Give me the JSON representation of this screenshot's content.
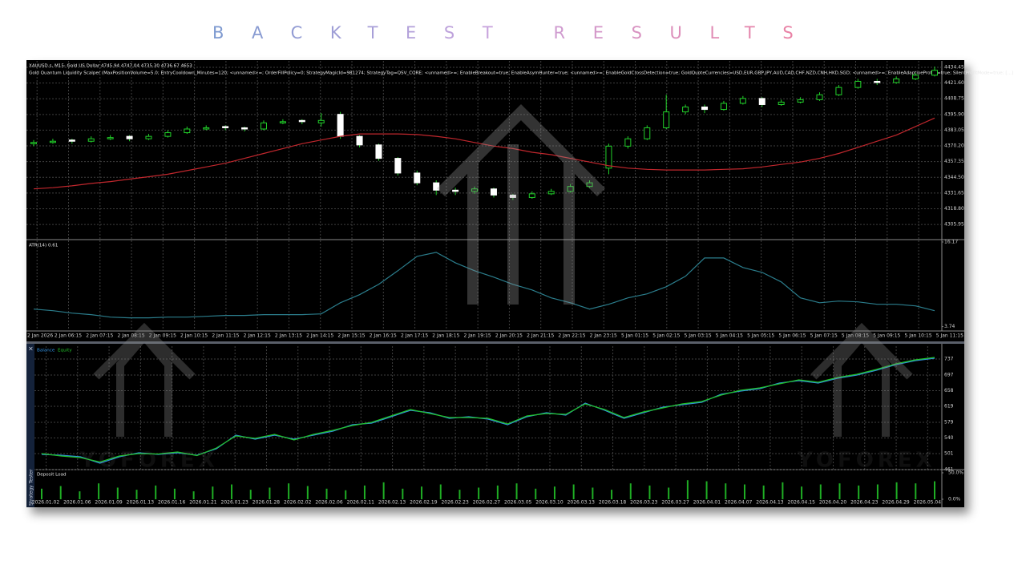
{
  "title": "BACKTEST RESULTS",
  "watermark": "YOFOREX",
  "panel_label": "Strategy Tester",
  "chart_data": [
    {
      "type": "candlestick",
      "title": "XAUUSD.s, M15:  Gold US Dollar  4745.94 4747.04 4735.30 4736.67  4653",
      "subtitle": "Gold Quantum Liquidity Scalper (MaxPositionVolume=5.0; EntryCooldown_Minutes=120; <unnamed>=; OrderFillPolicy=0; StrategyMagicId=981274; StrategyTag=QSV_CORE; <unnamed>=; EnableBreakout=true; EnableAsymHunter=true; <unnamed>=; EnableGoldCrossDetection=true; GoldQuoteCurrencies=USD,EUR,GBP,JPY,AUD,CAD,CHF,NZD,CNH,HKD,SGD; <unnamed>=; EnableAdaptiveProfile=true; SilentProfitMode=true; [...]",
      "open": [
        4372,
        4373,
        4375,
        4374,
        4376,
        4378,
        4376,
        4378,
        4381,
        4384,
        4386,
        4385,
        4384,
        4389,
        4391,
        4389,
        4396,
        4378,
        4371,
        4360,
        4348,
        4340,
        4334,
        4333,
        4335,
        4330,
        4328,
        4331,
        4333,
        4337,
        4352,
        4370,
        4376,
        4385,
        4398,
        4402,
        4400,
        4405,
        4409,
        4404,
        4406,
        4408,
        4412,
        4418,
        4423,
        4422,
        4425,
        4428
      ],
      "high": [
        4375,
        4376,
        4376,
        4378,
        4379,
        4379,
        4380,
        4383,
        4386,
        4387,
        4387,
        4386,
        4391,
        4392,
        4392,
        4397,
        4398,
        4379,
        4372,
        4361,
        4350,
        4342,
        4336,
        4337,
        4336,
        4331,
        4333,
        4335,
        4339,
        4342,
        4372,
        4378,
        4387,
        4412,
        4404,
        4404,
        4407,
        4411,
        4410,
        4408,
        4410,
        4414,
        4420,
        4425,
        4425,
        4427,
        4430,
        4435
      ],
      "low": [
        4370,
        4372,
        4372,
        4373,
        4375,
        4374,
        4375,
        4377,
        4380,
        4383,
        4383,
        4382,
        4383,
        4388,
        4388,
        4386,
        4376,
        4369,
        4358,
        4346,
        4338,
        4330,
        4330,
        4331,
        4328,
        4326,
        4327,
        4330,
        4332,
        4336,
        4347,
        4368,
        4375,
        4384,
        4396,
        4397,
        4399,
        4404,
        4402,
        4403,
        4405,
        4407,
        4411,
        4417,
        4420,
        4421,
        4424,
        4427
      ],
      "close": [
        4373,
        4374,
        4374,
        4376,
        4377,
        4376,
        4378,
        4381,
        4384,
        4385,
        4385,
        4384,
        4389,
        4390,
        4390,
        4391,
        4378,
        4371,
        4360,
        4348,
        4340,
        4334,
        4333,
        4335,
        4330,
        4328,
        4331,
        4333,
        4337,
        4340,
        4370,
        4376,
        4385,
        4398,
        4402,
        4400,
        4405,
        4409,
        4404,
        4406,
        4408,
        4412,
        4418,
        4423,
        4422,
        4425,
        4428,
        4432
      ],
      "up_color": "#000000",
      "down_color": "#ffffff",
      "wick_color": "#22d12a",
      "ma": {
        "color": "#c0272d",
        "values": [
          4335,
          4336,
          4337.5,
          4339.5,
          4341,
          4343,
          4345,
          4347,
          4350,
          4353,
          4356,
          4360,
          4364,
          4368,
          4372,
          4375,
          4378,
          4380,
          4380,
          4380,
          4379.5,
          4378,
          4376,
          4373,
          4370,
          4368,
          4365,
          4363,
          4360,
          4357,
          4354,
          4352,
          4351,
          4350.5,
          4350.5,
          4350.5,
          4351,
          4351.5,
          4353,
          4355,
          4357,
          4360,
          4364,
          4369,
          4374,
          4379,
          4386,
          4393
        ]
      },
      "time_labels": [
        "2 Jan 2026",
        "2 Jan 06:15",
        "2 Jan 07:15",
        "2 Jan 08:15",
        "2 Jan 09:15",
        "2 Jan 10:15",
        "2 Jan 11:15",
        "2 Jan 12:15",
        "2 Jan 13:15",
        "2 Jan 14:15",
        "2 Jan 15:15",
        "2 Jan 16:15",
        "2 Jan 17:15",
        "2 Jan 18:15",
        "2 Jan 19:15",
        "2 Jan 20:15",
        "2 Jan 21:15",
        "2 Jan 22:15",
        "2 Jan 23:15",
        "5 Jan 01:15",
        "5 Jan 02:15",
        "5 Jan 03:15",
        "5 Jan 04:15",
        "5 Jan 05:15",
        "5 Jan 06:15",
        "5 Jan 07:15",
        "5 Jan 08:15",
        "5 Jan 09:15",
        "5 Jan 10:15",
        "5 Jan 11:15"
      ],
      "ylim": [
        4294.2,
        4439.7
      ],
      "yticks": [
        4434.45,
        {
          "value": 4421.6,
          "label": "4421.60"
        },
        4408.75,
        {
          "value": 4395.9,
          "label": "4395.90"
        },
        4383.05,
        {
          "value": 4370.2,
          "label": "4370.20"
        },
        4357.35,
        {
          "value": 4344.5,
          "label": "4344.50"
        },
        4331.65,
        {
          "value": 4318.8,
          "label": "4318.80"
        },
        4305.95
      ],
      "grid": true
    },
    {
      "type": "line",
      "title": "ATR(14) 0.61",
      "series": [
        {
          "color": "#2b7d8c",
          "values": [
            6.32,
            6.08,
            5.73,
            5.5,
            5.14,
            5.03,
            5.03,
            5.14,
            5.14,
            5.26,
            5.38,
            5.38,
            5.5,
            5.5,
            5.5,
            5.61,
            7.25,
            8.43,
            9.95,
            11.95,
            14.06,
            14.65,
            13.12,
            11.95,
            11.01,
            9.95,
            9.13,
            7.96,
            7.25,
            6.32,
            7.02,
            7.96,
            8.55,
            9.6,
            11.13,
            13.82,
            13.82,
            12.42,
            11.71,
            10.3,
            7.96,
            7.25,
            7.49,
            7.37,
            7.02,
            7.02,
            6.79,
            6.08
          ]
        }
      ],
      "ylim": [
        3.22,
        16.4
      ],
      "yticks": [
        16.17,
        3.74
      ],
      "grid": false
    },
    {
      "type": "line",
      "series": [
        {
          "name": "Balance",
          "color": "#2f8fe0",
          "values": [
            499,
            497,
            493,
            477,
            493,
            503,
            499,
            503,
            497,
            513,
            547,
            537,
            547,
            537,
            547,
            557,
            573,
            577,
            593,
            609,
            603,
            589,
            593,
            587,
            573,
            593,
            603,
            597,
            627,
            609,
            589,
            603,
            617,
            623,
            629,
            649,
            657,
            663,
            677,
            683,
            677,
            689,
            697,
            709,
            723,
            733,
            739
          ]
        },
        {
          "name": "Equity",
          "color": "#22c22a",
          "values": [
            501,
            495,
            491,
            480,
            495,
            501,
            500,
            505,
            496,
            515,
            545,
            539,
            549,
            535,
            549,
            559,
            571,
            579,
            595,
            611,
            601,
            591,
            591,
            589,
            575,
            595,
            601,
            599,
            625,
            611,
            591,
            605,
            615,
            625,
            631,
            647,
            659,
            665,
            675,
            685,
            679,
            691,
            699,
            711,
            725,
            735,
            741
          ]
        }
      ],
      "date_labels": [
        "2026.01.02",
        "2026.01.06",
        "2026.01.09",
        "2026.01.13",
        "2026.01.16",
        "2026.01.21",
        "2026.01.23",
        "2026.01.28",
        "2026.02.02",
        "2026.02.06",
        "2026.02.11",
        "2026.02.13",
        "2026.02.19",
        "2026.02.23",
        "2026.02.27",
        "2026.03.05",
        "2026.03.10",
        "2026.03.13",
        "2026.03.18",
        "2026.03.23",
        "2026.03.27",
        "2026.04.01",
        "2026.04.07",
        "2026.04.13",
        "2026.04.15",
        "2026.04.20",
        "2026.04.23",
        "2026.04.29",
        "2026.05.04"
      ],
      "ylim": [
        461,
        769
      ],
      "yticks": [
        737,
        697,
        658,
        619,
        579,
        540,
        501,
        461
      ],
      "grid": true
    },
    {
      "type": "bar",
      "title": "Deposit Load",
      "values": [
        20,
        25,
        15,
        30,
        22,
        18,
        26,
        20,
        15,
        24,
        28,
        18,
        22,
        30,
        25,
        20,
        17,
        26,
        32,
        20,
        24,
        28,
        18,
        22,
        26,
        30,
        20,
        24,
        28,
        22,
        18,
        30,
        26,
        22,
        36,
        34,
        30,
        28,
        26,
        32,
        24,
        28,
        30,
        26,
        28,
        32,
        30,
        34
      ],
      "color": "#1fae24",
      "ylim": [
        -10.6,
        54.5
      ],
      "yticks": [
        {
          "value": 50,
          "label": "50.0%"
        },
        {
          "value": 0,
          "label": "0.0%"
        }
      ],
      "grid": false
    }
  ]
}
